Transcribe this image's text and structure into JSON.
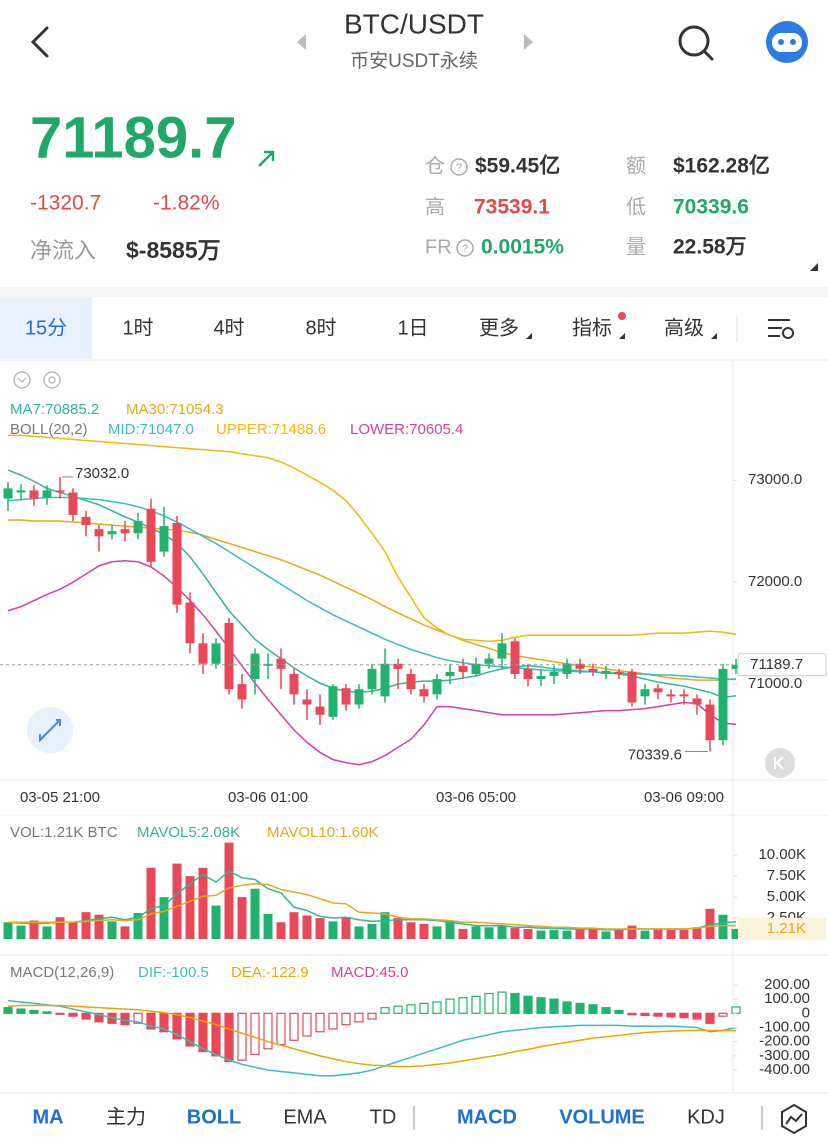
{
  "header": {
    "title": "BTC/USDT",
    "subtitle": "币安USDT永续"
  },
  "ticker": {
    "price": "71189.7",
    "change": "-1320.7",
    "change_pct": "-1.82%",
    "net_inflow_label": "净流入",
    "net_inflow": "$-8585万"
  },
  "stats": [
    {
      "label": "仓",
      "value": "$59.45亿"
    },
    {
      "label": "额",
      "value": "$162.28亿"
    },
    {
      "label": "高",
      "value": "73539.1"
    },
    {
      "label": "低",
      "value": "70339.6"
    },
    {
      "label": "FR",
      "value": "0.0015%"
    },
    {
      "label": "量",
      "value": "22.58万"
    }
  ],
  "intervals": [
    "15分",
    "1时",
    "4时",
    "8时",
    "1日",
    "更多",
    "指标",
    "高级"
  ],
  "indicator_tabs": [
    "MA",
    "主力",
    "BOLL",
    "EMA",
    "TD",
    "MACD",
    "VOLUME",
    "KDJ"
  ],
  "chart_data": [
    {
      "type": "candlestick",
      "indicator_label": "BOLL(20,2)",
      "categories": [
        null,
        null,
        null,
        null,
        "03-05 21:00",
        null,
        null,
        null,
        null,
        null,
        null,
        null,
        null,
        null,
        null,
        null,
        null,
        null,
        null,
        null,
        "03-06 01:00",
        null,
        null,
        null,
        null,
        null,
        null,
        null,
        null,
        null,
        null,
        null,
        null,
        null,
        null,
        null,
        "03-06 05:00",
        null,
        null,
        null,
        null,
        null,
        null,
        null,
        null,
        null,
        null,
        null,
        null,
        null,
        null,
        null,
        "03-06 09:00",
        null,
        null,
        null,
        null
      ],
      "open": [
        72820,
        72880,
        72900,
        72830,
        72900,
        72880,
        72640,
        72520,
        72470,
        72520,
        72480,
        72720,
        72300,
        72580,
        71800,
        71400,
        71200,
        71600,
        71000,
        71050,
        71180,
        71250,
        71100,
        70850,
        70780,
        70680,
        70960,
        70800,
        70950,
        70880,
        71200,
        71100,
        70950,
        70900,
        71080,
        71180,
        71100,
        71200,
        71250,
        71420,
        71150,
        71050,
        71080,
        71100,
        71200,
        71150,
        71100,
        71120,
        71120,
        70880,
        70960,
        70900,
        70900,
        70860,
        70800,
        70450,
        71150
      ],
      "high": [
        72980,
        72960,
        72950,
        72950,
        73032,
        72920,
        72700,
        72560,
        72560,
        72600,
        72680,
        72820,
        72740,
        72650,
        71900,
        71500,
        71450,
        71650,
        71100,
        71350,
        71300,
        71350,
        71150,
        70950,
        70900,
        71000,
        71000,
        71000,
        71200,
        71350,
        71250,
        71150,
        71000,
        71100,
        71200,
        71250,
        71260,
        71300,
        71500,
        71450,
        71200,
        71150,
        71180,
        71250,
        71250,
        71200,
        71180,
        71150,
        71150,
        71000,
        71000,
        70950,
        70950,
        70900,
        70850,
        71200,
        71250
      ],
      "low": [
        72700,
        72800,
        72750,
        72760,
        72820,
        72600,
        72450,
        72300,
        72420,
        72400,
        72420,
        72150,
        72250,
        71700,
        71300,
        71100,
        71150,
        70900,
        70760,
        70900,
        71050,
        70950,
        70800,
        70650,
        70600,
        70650,
        70740,
        70760,
        70900,
        70820,
        70950,
        70900,
        70820,
        70850,
        71000,
        71050,
        71080,
        71150,
        71150,
        71050,
        70980,
        70980,
        71000,
        71050,
        71100,
        71080,
        71050,
        71050,
        70780,
        70800,
        70850,
        70820,
        70800,
        70700,
        70339.6,
        70400,
        71100
      ],
      "close": [
        72920,
        72900,
        72820,
        72900,
        72880,
        72660,
        72560,
        72450,
        72500,
        72480,
        72600,
        72200,
        72550,
        71780,
        71400,
        71200,
        71400,
        70950,
        70850,
        71300,
        71200,
        71150,
        70900,
        70800,
        70700,
        70980,
        70800,
        70950,
        71150,
        71200,
        71150,
        70950,
        70880,
        71050,
        71120,
        71120,
        71200,
        71250,
        71400,
        71100,
        71050,
        71080,
        71120,
        71200,
        71150,
        71120,
        71130,
        71100,
        70820,
        70950,
        70920,
        70880,
        70880,
        70800,
        70450,
        71150,
        71189.7
      ],
      "up_color": "#21b26d",
      "down_color": "#e84857",
      "series": [
        {
          "name": "MA7:70885.2",
          "color": "#35b49c",
          "values": [
            73100,
            73050,
            72990,
            72920,
            72880,
            72840,
            72800,
            72760,
            72700,
            72640,
            72590,
            72530,
            72470,
            72380,
            72250,
            72080,
            71900,
            71720,
            71580,
            71440,
            71340,
            71250,
            71160,
            71080,
            71010,
            70960,
            70930,
            70920,
            70930,
            70960,
            71000,
            71020,
            71030,
            71030,
            71040,
            71060,
            71080,
            71120,
            71150,
            71170,
            71180,
            71170,
            71150,
            71140,
            71130,
            71120,
            71110,
            71100,
            71080,
            71050,
            71020,
            71000,
            70980,
            70950,
            70920,
            70870,
            70885.2
          ]
        },
        {
          "name": "MA30:71054.3",
          "color": "#e6a91a",
          "values": [
            72610,
            72610,
            72600,
            72600,
            72600,
            72590,
            72580,
            72570,
            72560,
            72550,
            72540,
            72530,
            72520,
            72510,
            72490,
            72460,
            72420,
            72380,
            72340,
            72300,
            72260,
            72220,
            72170,
            72120,
            72070,
            72010,
            71950,
            71890,
            71830,
            71760,
            71700,
            71640,
            71580,
            71530,
            71480,
            71430,
            71390,
            71350,
            71310,
            71280,
            71260,
            71240,
            71220,
            71200,
            71180,
            71170,
            71150,
            71130,
            71120,
            71100,
            71080,
            71060,
            71050,
            71040,
            71040,
            71040,
            71054.3
          ]
        },
        {
          "name": "MID:71047.0",
          "color": "#3cbcc0",
          "values": [
            72800,
            72810,
            72820,
            72830,
            72830,
            72830,
            72820,
            72810,
            72790,
            72770,
            72740,
            72700,
            72650,
            72590,
            72520,
            72450,
            72380,
            72300,
            72220,
            72140,
            72060,
            71980,
            71900,
            71820,
            71750,
            71680,
            71620,
            71560,
            71500,
            71440,
            71390,
            71340,
            71300,
            71260,
            71230,
            71210,
            71190,
            71180,
            71170,
            71160,
            71150,
            71140,
            71130,
            71130,
            71120,
            71120,
            71110,
            71110,
            71100,
            71100,
            71090,
            71090,
            71080,
            71070,
            71060,
            71050,
            71047
          ]
        },
        {
          "name": "UPPER:71488.6",
          "color": "#f0b90b",
          "values": [
            73440,
            73440,
            73430,
            73420,
            73410,
            73400,
            73390,
            73380,
            73370,
            73360,
            73350,
            73340,
            73330,
            73320,
            73310,
            73300,
            73290,
            73280,
            73260,
            73240,
            73220,
            73180,
            73120,
            73050,
            72980,
            72900,
            72800,
            72650,
            72480,
            72300,
            72050,
            71850,
            71650,
            71550,
            71480,
            71440,
            71430,
            71420,
            71430,
            71460,
            71480,
            71480,
            71480,
            71480,
            71480,
            71480,
            71480,
            71480,
            71480,
            71490,
            71500,
            71500,
            71500,
            71510,
            71520,
            71510,
            71488.6
          ]
        },
        {
          "name": "LOWER:70605.4",
          "color": "#d63fa3",
          "values": [
            71720,
            71760,
            71820,
            71880,
            71930,
            72000,
            72080,
            72160,
            72200,
            72210,
            72200,
            72150,
            72060,
            71950,
            71820,
            71680,
            71520,
            71350,
            71180,
            71010,
            70850,
            70700,
            70550,
            70430,
            70330,
            70260,
            70230,
            70210,
            70240,
            70300,
            70380,
            70460,
            70600,
            70780,
            70780,
            70760,
            70740,
            70720,
            70700,
            70700,
            70700,
            70700,
            70700,
            70710,
            70720,
            70730,
            70740,
            70740,
            70750,
            70760,
            70780,
            70800,
            70820,
            70810,
            70700,
            70620,
            70605.4
          ]
        }
      ],
      "ylim": [
        70060,
        74130
      ],
      "yticks": [
        {
          "value": 73000,
          "label": "73000.0"
        },
        {
          "value": 72000,
          "label": "72000.0"
        },
        {
          "value": 71000,
          "label": "71000.0"
        }
      ],
      "annotations": {
        "high": {
          "value": 73032,
          "label": "73032.0"
        },
        "low": {
          "value": 70339.6,
          "label": "70339.6"
        }
      },
      "last_price": {
        "value": 71189.7,
        "label": "71189.7"
      }
    },
    {
      "type": "bar",
      "title": "VOL:1.21K BTC",
      "values": [
        2.0,
        1.6,
        2.2,
        1.5,
        2.6,
        2.0,
        3.2,
        2.9,
        2.1,
        1.5,
        3.1,
        8.5,
        5.0,
        9.0,
        7.5,
        8.5,
        4.0,
        11.5,
        5.0,
        6.0,
        3.0,
        2.0,
        3.2,
        2.8,
        2.5,
        2.1,
        2.6,
        1.5,
        1.8,
        3.2,
        2.5,
        2.0,
        1.8,
        1.5,
        2.2,
        1.2,
        1.5,
        1.4,
        1.6,
        1.3,
        1.2,
        1.0,
        1.1,
        1.0,
        1.2,
        1.3,
        0.9,
        1.1,
        1.6,
        1.0,
        1.2,
        1.1,
        1.1,
        1.4,
        3.6,
        2.9,
        1.21
      ],
      "series": [
        {
          "name": "MAVOL5:2.08K",
          "color": "#35b49c",
          "values": [
            2.0,
            1.9,
            1.9,
            1.9,
            2.0,
            2.0,
            2.2,
            2.4,
            2.6,
            2.3,
            2.6,
            3.6,
            4.0,
            5.4,
            6.6,
            7.7,
            6.8,
            8.1,
            7.3,
            7.1,
            6.0,
            5.5,
            3.8,
            3.4,
            2.7,
            2.5,
            2.6,
            2.3,
            2.1,
            2.2,
            2.3,
            2.3,
            2.3,
            2.2,
            2.0,
            1.8,
            1.6,
            1.6,
            1.6,
            1.4,
            1.4,
            1.3,
            1.3,
            1.2,
            1.2,
            1.2,
            1.1,
            1.1,
            1.2,
            1.2,
            1.2,
            1.2,
            1.2,
            1.3,
            1.7,
            1.9,
            2.08
          ]
        },
        {
          "name": "MAVOL10:1.60K",
          "color": "#e6a91a",
          "values": [
            2.0,
            2.0,
            2.0,
            2.0,
            2.0,
            2.0,
            2.1,
            2.2,
            2.3,
            2.2,
            2.3,
            3.0,
            3.3,
            3.9,
            4.5,
            5.1,
            5.2,
            6.1,
            6.4,
            6.6,
            6.5,
            5.9,
            5.6,
            5.3,
            4.8,
            4.3,
            4.2,
            3.2,
            3.1,
            3.0,
            2.6,
            2.4,
            2.4,
            2.3,
            2.2,
            2.0,
            2.0,
            1.9,
            1.8,
            1.7,
            1.6,
            1.5,
            1.4,
            1.4,
            1.3,
            1.3,
            1.2,
            1.2,
            1.2,
            1.2,
            1.2,
            1.2,
            1.2,
            1.3,
            1.5,
            1.6,
            1.6
          ]
        }
      ],
      "ylim": [
        0,
        14.2
      ],
      "yticks": [
        {
          "value": 10,
          "label": "10.00K"
        },
        {
          "value": 7.5,
          "label": "7.50K"
        },
        {
          "value": 5,
          "label": "5.00K"
        },
        {
          "value": 2.5,
          "label": "2.50K"
        }
      ],
      "current": {
        "value": 1.21,
        "label": "1.21K"
      }
    },
    {
      "type": "macd",
      "title": "MACD(12,26,9)",
      "histogram": {
        "name": "MACD:45.0",
        "color": "#d63fa3"
      },
      "values": [
        40,
        30,
        20,
        10,
        -5,
        -20,
        -40,
        -60,
        -70,
        -80,
        -70,
        -110,
        -130,
        -180,
        -230,
        -270,
        -300,
        -340,
        -330,
        -290,
        -250,
        -220,
        -190,
        -160,
        -130,
        -110,
        -80,
        -60,
        -40,
        40,
        50,
        60,
        70,
        80,
        100,
        110,
        120,
        140,
        150,
        140,
        120,
        110,
        100,
        80,
        70,
        60,
        40,
        20,
        -10,
        -15,
        -20,
        -25,
        -30,
        -40,
        -70,
        -20,
        45
      ],
      "series": [
        {
          "name": "DIF:-100.5",
          "color": "#3cbcc0",
          "values": [
            90,
            80,
            70,
            60,
            50,
            30,
            10,
            -10,
            -30,
            -50,
            -60,
            -90,
            -110,
            -150,
            -200,
            -250,
            -290,
            -330,
            -360,
            -380,
            -400,
            -410,
            -420,
            -430,
            -440,
            -440,
            -430,
            -420,
            -400,
            -370,
            -340,
            -310,
            -280,
            -250,
            -220,
            -190,
            -170,
            -150,
            -130,
            -120,
            -110,
            -100,
            -95,
            -90,
            -85,
            -85,
            -85,
            -85,
            -90,
            -90,
            -90,
            -90,
            -95,
            -100,
            -130,
            -120,
            -100.5
          ]
        },
        {
          "name": "DEA:-122.9",
          "color": "#f0a500",
          "values": [
            50,
            55,
            55,
            55,
            55,
            50,
            45,
            40,
            35,
            30,
            25,
            15,
            5,
            -10,
            -30,
            -55,
            -80,
            -110,
            -140,
            -170,
            -200,
            -225,
            -250,
            -275,
            -300,
            -320,
            -340,
            -355,
            -365,
            -370,
            -375,
            -375,
            -370,
            -360,
            -350,
            -335,
            -320,
            -305,
            -290,
            -270,
            -255,
            -235,
            -220,
            -205,
            -190,
            -175,
            -165,
            -155,
            -145,
            -135,
            -130,
            -125,
            -122,
            -120,
            -120,
            -122,
            -122.9
          ]
        }
      ],
      "ylim": [
        -470,
        376
      ],
      "yticks": [
        {
          "value": 200,
          "label": "200.00"
        },
        {
          "value": 100,
          "label": "100.00"
        },
        0,
        {
          "value": -100,
          "label": "-100.00"
        },
        {
          "value": -200,
          "label": "-200.00"
        },
        {
          "value": -300,
          "label": "-300.00"
        },
        {
          "value": -400,
          "label": "-400.00"
        }
      ]
    }
  ]
}
